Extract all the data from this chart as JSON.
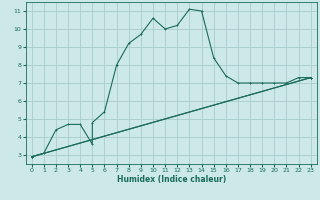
{
  "xlabel": "Humidex (Indice chaleur)",
  "bg_color": "#cce8e8",
  "grid_color": "#aacccc",
  "line_color": "#1a6b5a",
  "xlim": [
    -0.5,
    23.5
  ],
  "ylim": [
    2.5,
    11.5
  ],
  "xticks": [
    0,
    1,
    2,
    3,
    4,
    5,
    6,
    7,
    8,
    9,
    10,
    11,
    12,
    13,
    14,
    15,
    16,
    17,
    18,
    19,
    20,
    21,
    22,
    23
  ],
  "yticks": [
    3,
    4,
    5,
    6,
    7,
    8,
    9,
    10,
    11
  ],
  "series1_x": [
    0,
    1,
    2,
    3,
    4,
    5,
    5,
    6,
    7,
    8,
    9,
    10,
    11,
    12,
    13,
    14,
    15,
    16,
    17,
    18,
    19,
    20,
    21,
    22,
    23
  ],
  "series1_y": [
    2.9,
    3.1,
    4.4,
    4.7,
    4.7,
    3.6,
    4.8,
    5.4,
    8.0,
    9.2,
    9.7,
    10.6,
    10.0,
    10.2,
    11.1,
    11.0,
    8.4,
    7.4,
    7.0,
    7.0,
    7.0,
    7.0,
    7.0,
    7.3,
    7.3
  ],
  "series2_x": [
    0,
    23
  ],
  "series2_y": [
    2.9,
    7.3
  ],
  "series3_x": [
    0,
    23
  ],
  "series3_y": [
    2.9,
    7.3
  ]
}
